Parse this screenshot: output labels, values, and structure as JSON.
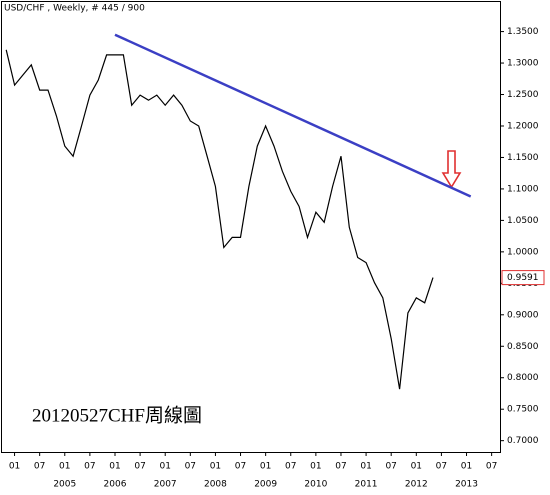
{
  "chart_data": {
    "type": "line",
    "title": "USD/CHF , Weekly, # 445 / 900",
    "annotation": "20120527CHF周線圖",
    "x": [
      "2003-11",
      "2004-01",
      "2004-03",
      "2004-05",
      "2004-07",
      "2004-09",
      "2004-11",
      "2005-01",
      "2005-03",
      "2005-05",
      "2005-07",
      "2005-09",
      "2005-11",
      "2006-01",
      "2006-03",
      "2006-05",
      "2006-07",
      "2006-09",
      "2006-11",
      "2007-01",
      "2007-03",
      "2007-05",
      "2007-07",
      "2007-09",
      "2007-11",
      "2008-01",
      "2008-03",
      "2008-05",
      "2008-07",
      "2008-09",
      "2008-11",
      "2009-01",
      "2009-03",
      "2009-05",
      "2009-07",
      "2009-09",
      "2009-11",
      "2010-01",
      "2010-03",
      "2010-05",
      "2010-07",
      "2010-09",
      "2010-11",
      "2011-01",
      "2011-03",
      "2011-05",
      "2011-07",
      "2011-09",
      "2011-11",
      "2012-01",
      "2012-03",
      "2012-05"
    ],
    "values": [
      1.321,
      1.265,
      1.281,
      1.297,
      1.257,
      1.257,
      1.216,
      1.168,
      1.152,
      1.2,
      1.249,
      1.273,
      1.313,
      1.313,
      1.313,
      1.233,
      1.249,
      1.241,
      1.249,
      1.233,
      1.249,
      1.233,
      1.208,
      1.2,
      1.152,
      1.104,
      1.007,
      1.023,
      1.023,
      1.104,
      1.168,
      1.2,
      1.168,
      1.128,
      1.096,
      1.072,
      1.023,
      1.063,
      1.047,
      1.104,
      1.152,
      1.039,
      0.991,
      0.983,
      0.951,
      0.927,
      0.862,
      0.782,
      0.903,
      0.927,
      0.919,
      0.9591
    ],
    "color": "#000000",
    "last_price": 0.9591,
    "trendline": {
      "x": [
        "2006-01",
        "2013-02"
      ],
      "values": [
        1.345,
        1.088
      ],
      "color": "#3b3fc4"
    },
    "xlim": [
      "2003-10",
      "2013-09"
    ],
    "xticks": [
      {
        "value": "2004-01",
        "label": "01"
      },
      {
        "value": "2004-07",
        "label": "07"
      },
      {
        "value": "2005-01",
        "label": "01"
      },
      {
        "value": "2005-07",
        "label": "07"
      },
      {
        "value": "2006-01",
        "label": "01"
      },
      {
        "value": "2006-07",
        "label": "07"
      },
      {
        "value": "2007-01",
        "label": "01"
      },
      {
        "value": "2007-07",
        "label": "07"
      },
      {
        "value": "2008-01",
        "label": "01"
      },
      {
        "value": "2008-07",
        "label": "07"
      },
      {
        "value": "2009-01",
        "label": "01"
      },
      {
        "value": "2009-07",
        "label": "07"
      },
      {
        "value": "2010-01",
        "label": "01"
      },
      {
        "value": "2010-07",
        "label": "07"
      },
      {
        "value": "2011-01",
        "label": "01"
      },
      {
        "value": "2011-07",
        "label": "07"
      },
      {
        "value": "2012-01",
        "label": "01"
      },
      {
        "value": "2012-07",
        "label": "07"
      },
      {
        "value": "2013-01",
        "label": "01"
      },
      {
        "value": "2013-07",
        "label": "07"
      }
    ],
    "year_labels": [
      {
        "value": "2005-01",
        "label": "2005"
      },
      {
        "value": "2006-01",
        "label": "2006"
      },
      {
        "value": "2007-01",
        "label": "2007"
      },
      {
        "value": "2008-01",
        "label": "2008"
      },
      {
        "value": "2009-01",
        "label": "2009"
      },
      {
        "value": "2010-01",
        "label": "2010"
      },
      {
        "value": "2011-01",
        "label": "2011"
      },
      {
        "value": "2012-01",
        "label": "2012"
      },
      {
        "value": "2013-01",
        "label": "2013"
      }
    ],
    "ylim": [
      0.682,
      1.397
    ],
    "yticks": [
      {
        "value": 0.7,
        "label": "0.7000"
      },
      {
        "value": 0.75,
        "label": "0.7500"
      },
      {
        "value": 0.8,
        "label": "0.8000"
      },
      {
        "value": 0.85,
        "label": "0.8500"
      },
      {
        "value": 0.9,
        "label": "0.9000"
      },
      {
        "value": 0.95,
        "label": "0.9500"
      },
      {
        "value": 1.0,
        "label": "1.0000"
      },
      {
        "value": 1.05,
        "label": "1.0500"
      },
      {
        "value": 1.1,
        "label": "1.1000"
      },
      {
        "value": 1.15,
        "label": "1.1500"
      },
      {
        "value": 1.2,
        "label": "1.2000"
      },
      {
        "value": 1.25,
        "label": "1.2500"
      },
      {
        "value": 1.3,
        "label": "1.3000"
      },
      {
        "value": 1.35,
        "label": "1.3500"
      }
    ]
  }
}
